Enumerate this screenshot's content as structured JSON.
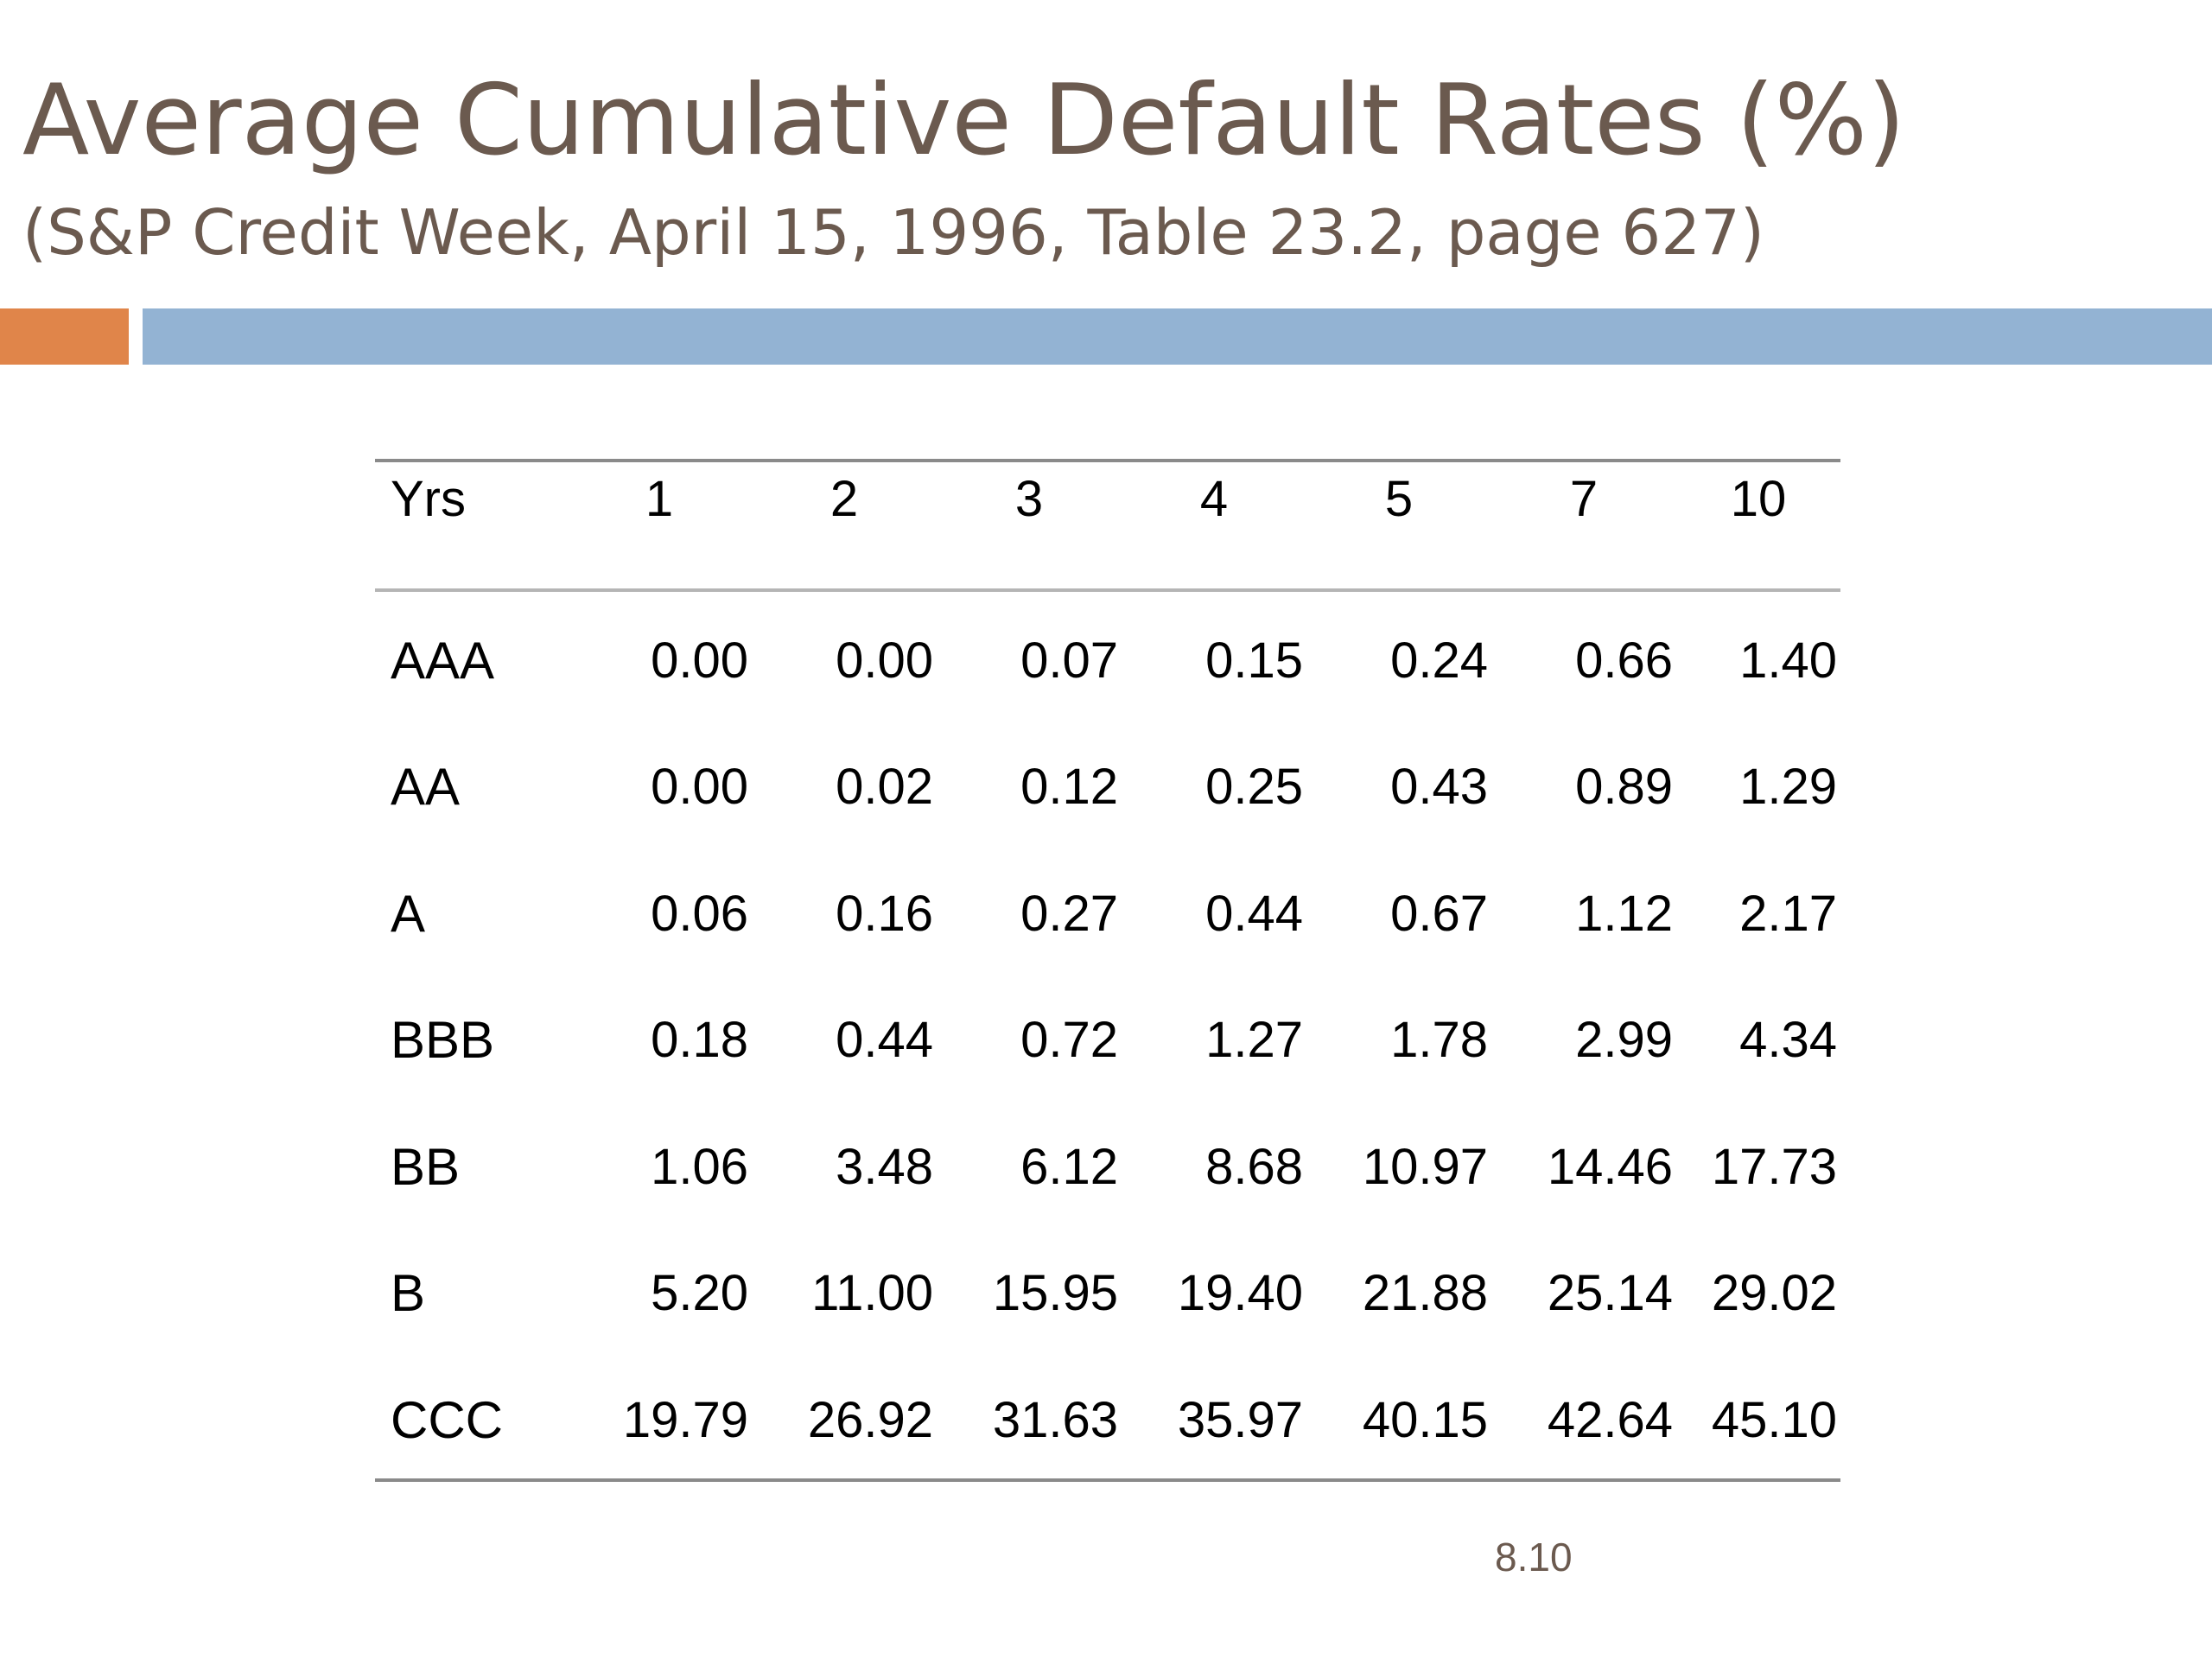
{
  "slide": {
    "title": "Average Cumulative Default Rates (%)",
    "subtitle": "(S&P Credit Week, April 15, 1996, Table 23.2, page 627)",
    "title_color": "#6b5a4f",
    "accent_color": "#e0854a",
    "bar_color": "#93b3d3",
    "page_number": "8.10"
  },
  "table": {
    "header_label": "Yrs",
    "years": [
      "1",
      "2",
      "3",
      "4",
      "5",
      "7",
      "10"
    ],
    "rows": [
      {
        "rating": "AAA",
        "values": [
          "0.00",
          "0.00",
          "0.07",
          "0.15",
          "0.24",
          "0.66",
          "1.40"
        ]
      },
      {
        "rating": "AA",
        "values": [
          "0.00",
          "0.02",
          "0.12",
          "0.25",
          "0.43",
          "0.89",
          "1.29"
        ]
      },
      {
        "rating": "A",
        "values": [
          "0.06",
          "0.16",
          "0.27",
          "0.44",
          "0.67",
          "1.12",
          "2.17"
        ]
      },
      {
        "rating": "BBB",
        "values": [
          "0.18",
          "0.44",
          "0.72",
          "1.27",
          "1.78",
          "2.99",
          "4.34"
        ]
      },
      {
        "rating": "BB",
        "values": [
          "1.06",
          "3.48",
          "6.12",
          "8.68",
          "10.97",
          "14.46",
          "17.73"
        ]
      },
      {
        "rating": "B",
        "values": [
          "5.20",
          "11.00",
          "15.95",
          "19.40",
          "21.88",
          "25.14",
          "29.02"
        ]
      },
      {
        "rating": "CCC",
        "values": [
          "19.79",
          "26.92",
          "31.63",
          "35.97",
          "40.15",
          "42.64",
          "45.10"
        ]
      }
    ]
  }
}
